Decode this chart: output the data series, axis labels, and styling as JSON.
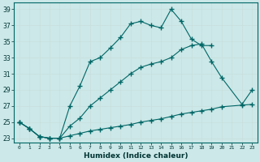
{
  "xlabel": "Humidex (Indice chaleur)",
  "bg_color": "#cce8e8",
  "grid_color": "#aacccc",
  "line_color": "#006666",
  "xlim": [
    -0.5,
    23.5
  ],
  "ylim": [
    22.5,
    39.8
  ],
  "yticks": [
    23,
    25,
    27,
    29,
    31,
    33,
    35,
    37,
    39
  ],
  "xticks": [
    0,
    1,
    2,
    3,
    4,
    5,
    6,
    7,
    8,
    9,
    10,
    11,
    12,
    13,
    14,
    15,
    16,
    17,
    18,
    19,
    20,
    21,
    22,
    23
  ],
  "line1_x": [
    0,
    1,
    2,
    3,
    4,
    5,
    6,
    7,
    8,
    9,
    10,
    11,
    12,
    13,
    14,
    15,
    16,
    17,
    18,
    19
  ],
  "line1_y": [
    25.0,
    24.2,
    23.2,
    23.0,
    23.0,
    27.0,
    29.5,
    32.5,
    33.0,
    34.2,
    35.5,
    37.2,
    37.5,
    37.0,
    36.7,
    39.0,
    37.5,
    35.3,
    34.5,
    34.5
  ],
  "line2_x": [
    0,
    1,
    2,
    3,
    4,
    5,
    6,
    7,
    8,
    9,
    10,
    11,
    12,
    13,
    14,
    15,
    16,
    17,
    18,
    19,
    20,
    22,
    23
  ],
  "line2_y": [
    25.0,
    24.2,
    23.2,
    23.0,
    23.0,
    24.5,
    25.5,
    27.0,
    28.0,
    29.0,
    30.0,
    31.0,
    31.8,
    32.2,
    32.5,
    33.0,
    34.0,
    34.5,
    34.7,
    32.5,
    30.5,
    27.2,
    29.0
  ],
  "line3_x": [
    0,
    1,
    2,
    3,
    4,
    5,
    6,
    7,
    8,
    9,
    10,
    11,
    12,
    13,
    14,
    15,
    16,
    17,
    18,
    19,
    20,
    22,
    23
  ],
  "line3_y": [
    25.0,
    24.2,
    23.2,
    23.0,
    23.0,
    23.3,
    23.6,
    23.9,
    24.1,
    24.3,
    24.5,
    24.7,
    25.0,
    25.2,
    25.4,
    25.7,
    26.0,
    26.2,
    26.4,
    26.6,
    26.9,
    27.1,
    27.2
  ]
}
